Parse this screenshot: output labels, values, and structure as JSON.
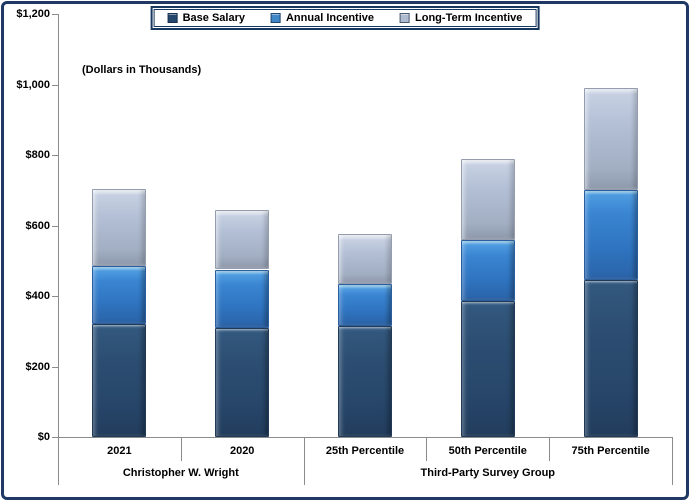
{
  "window": {
    "background": "#FFFFFF",
    "frame_color": "#1F3864"
  },
  "legend": {
    "items": [
      {
        "label": "Base Salary",
        "color": "#24466B"
      },
      {
        "label": "Annual Incentive",
        "color": "#3E86C8"
      },
      {
        "label": "Long-Term Incentive",
        "color": "#AEBACF"
      }
    ]
  },
  "chart_data": {
    "type": "bar",
    "stacked": true,
    "title": "",
    "annotation": "(Dollars in Thousands)",
    "categories": [
      "2021",
      "2020",
      "25th Percentile",
      "50th Percentile",
      "75th Percentile"
    ],
    "groups": [
      {
        "label": "Christopher W. Wright",
        "span": [
          0,
          1
        ]
      },
      {
        "label": "Third-Party Survey Group",
        "span": [
          2,
          4
        ]
      }
    ],
    "series": [
      {
        "name": "Base Salary",
        "values": [
          320,
          310,
          315,
          385,
          445
        ]
      },
      {
        "name": "Annual Incentive",
        "values": [
          165,
          165,
          120,
          175,
          255
        ]
      },
      {
        "name": "Long-Term Incentive",
        "values": [
          220,
          170,
          140,
          230,
          290
        ]
      }
    ],
    "totals": [
      705,
      645,
      575,
      790,
      990
    ],
    "ylim": [
      0,
      1200
    ],
    "ytick_step": 200,
    "ytick_labels": [
      "$0",
      "$200",
      "$400",
      "$600",
      "$800",
      "$1,000",
      "$1,200"
    ],
    "legend_position": "top",
    "grid": false,
    "colors": {
      "base_salary": "#2B4C6F",
      "annual_incentive": "#3478C8",
      "long_term_incentive": "#AEBACF"
    }
  }
}
